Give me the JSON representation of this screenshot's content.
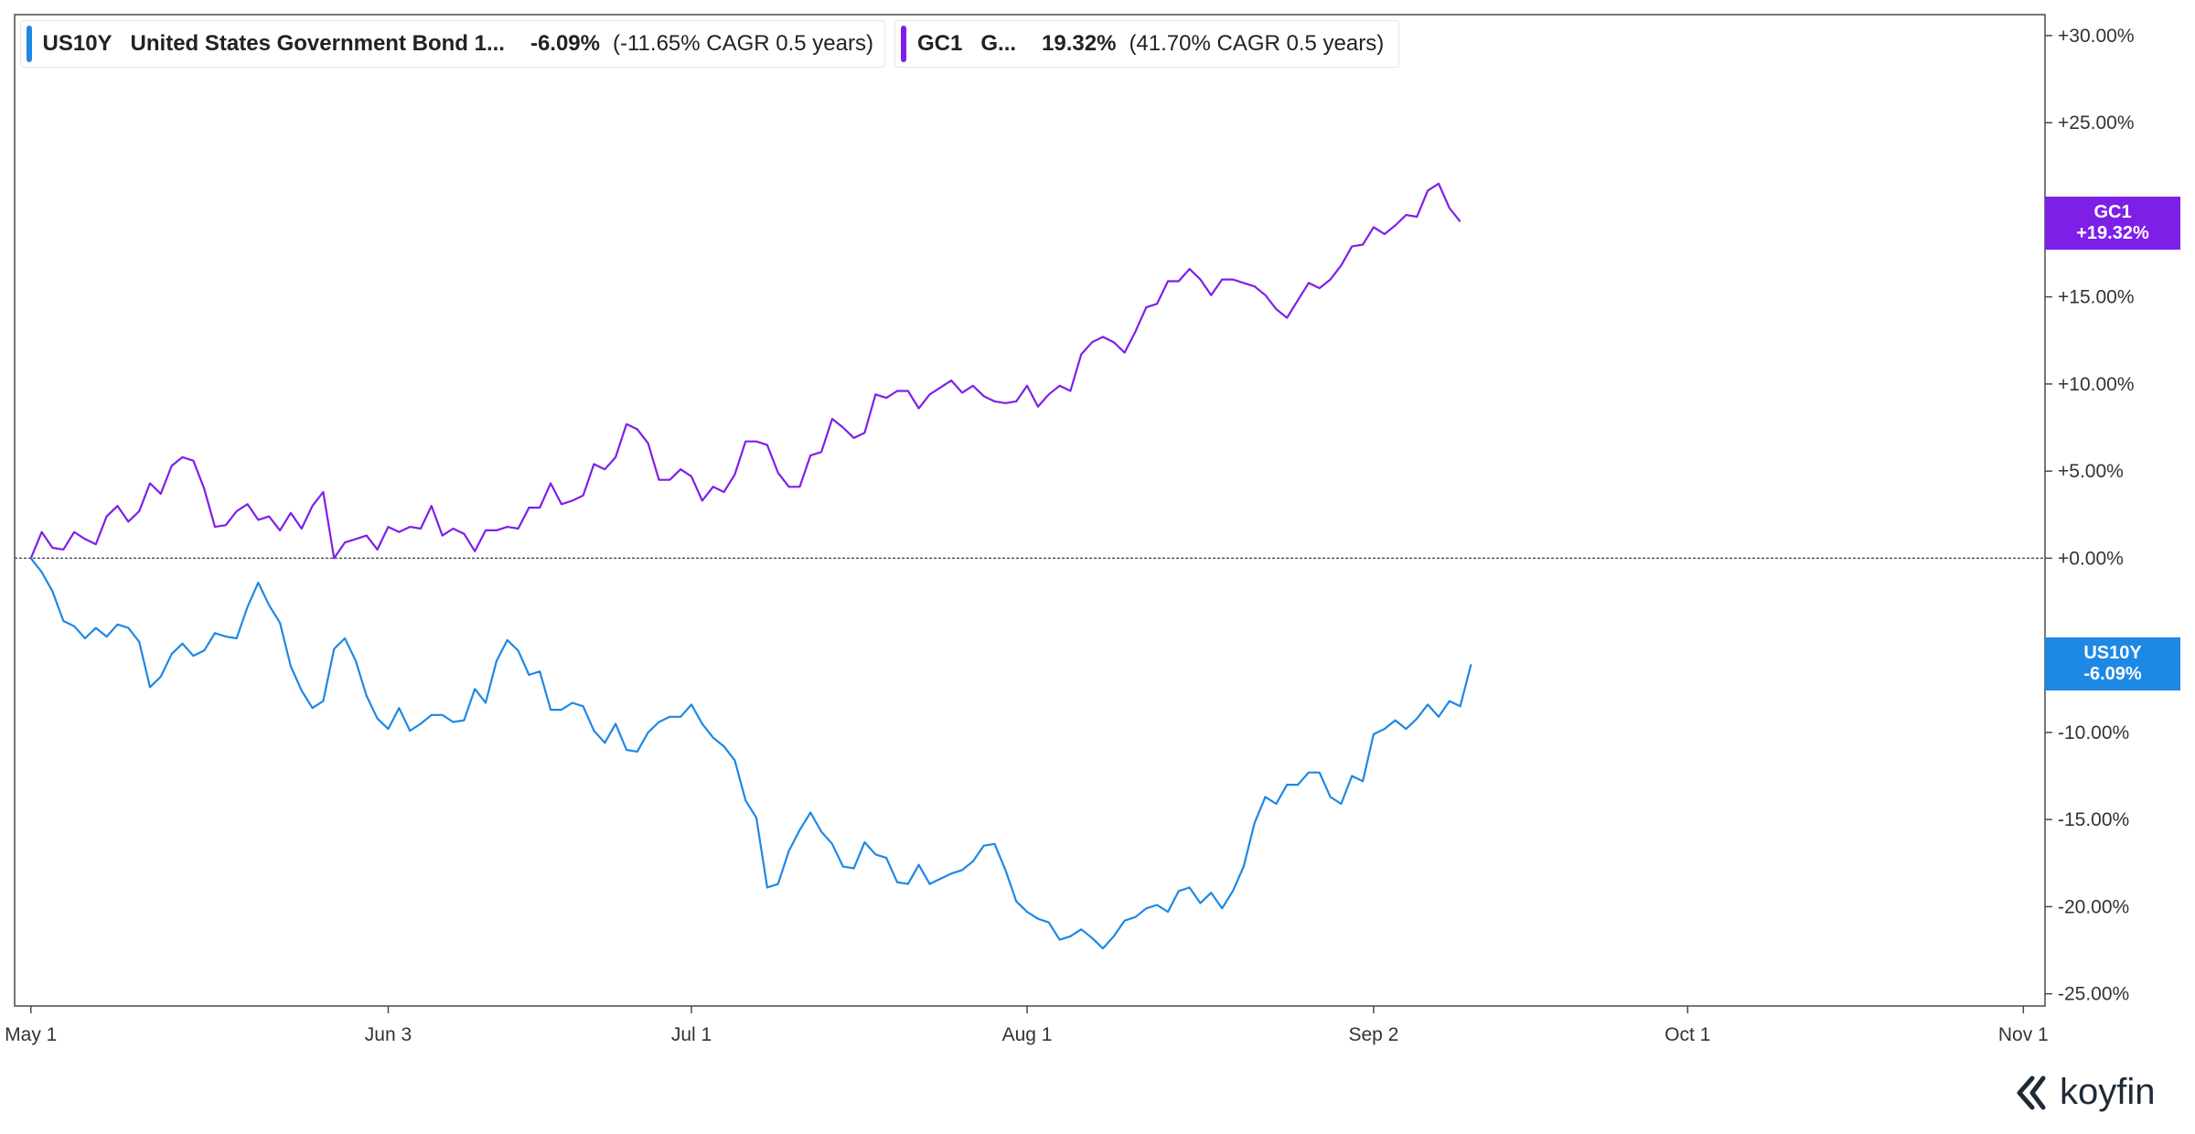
{
  "legend": [
    {
      "ticker": "US10Y",
      "name": "United States Government Bond 1...",
      "change": "-6.09%",
      "cagr": "(-11.65% CAGR 0.5 years)",
      "color": "#1e88e5"
    },
    {
      "ticker": "GC1",
      "name": "G...",
      "change": "19.32%",
      "cagr": "(41.70% CAGR 0.5 years)",
      "color": "#7e1fe8"
    }
  ],
  "end_labels": [
    {
      "ticker": "GC1",
      "value": "+19.32%",
      "color": "#7e1fe8"
    },
    {
      "ticker": "US10Y",
      "value": "-6.09%",
      "color": "#1e88e5"
    }
  ],
  "brand": "koyfin",
  "chart_data": {
    "type": "line",
    "y_ticks": [
      "+30.00%",
      "+25.00%",
      "+20.00%",
      "+15.00%",
      "+10.00%",
      "+5.00%",
      "+0.00%",
      "-5.00%",
      "-10.00%",
      "-15.00%",
      "-20.00%",
      "-25.00%"
    ],
    "y_tick_values": [
      30,
      25,
      20,
      15,
      10,
      5,
      0,
      -5,
      -10,
      -15,
      -20,
      -25
    ],
    "ylim": [
      -25.7,
      31.2
    ],
    "x_ticks": [
      "May 1",
      "Jun 3",
      "Jul 1",
      "Aug 1",
      "Sep 2",
      "Oct 1",
      "Nov 1"
    ],
    "x_tick_days": [
      0,
      33,
      61,
      92,
      124,
      153,
      184
    ],
    "xlim": [
      -1.5,
      186
    ],
    "baseline": 0,
    "series": [
      {
        "name": "GC1",
        "color": "#7e1fe8",
        "points": [
          [
            0,
            0
          ],
          [
            1,
            1.5
          ],
          [
            2,
            0.6
          ],
          [
            3,
            0.5
          ],
          [
            4,
            1.5
          ],
          [
            5,
            1.1
          ],
          [
            6,
            0.8
          ],
          [
            7,
            2.4
          ],
          [
            8,
            3
          ],
          [
            9,
            2.1
          ],
          [
            10,
            2.7
          ],
          [
            11,
            4.3
          ],
          [
            12,
            3.7
          ],
          [
            13,
            5.3
          ],
          [
            14,
            5.8
          ],
          [
            15,
            5.6
          ],
          [
            16,
            4
          ],
          [
            17,
            1.8
          ],
          [
            18,
            1.9
          ],
          [
            19,
            2.7
          ],
          [
            20,
            3.1
          ],
          [
            21,
            2.2
          ],
          [
            22,
            2.4
          ],
          [
            23,
            1.6
          ],
          [
            24,
            2.6
          ],
          [
            25,
            1.7
          ],
          [
            26,
            3
          ],
          [
            27,
            3.8
          ],
          [
            28,
            0
          ],
          [
            29,
            0.9
          ],
          [
            30,
            1.1
          ],
          [
            31,
            1.3
          ],
          [
            32,
            0.5
          ],
          [
            33,
            1.8
          ],
          [
            34,
            1.5
          ],
          [
            35,
            1.8
          ],
          [
            36,
            1.7
          ],
          [
            37,
            3
          ],
          [
            38,
            1.3
          ],
          [
            39,
            1.7
          ],
          [
            40,
            1.4
          ],
          [
            41,
            0.4
          ],
          [
            42,
            1.6
          ],
          [
            43,
            1.6
          ],
          [
            44,
            1.8
          ],
          [
            45,
            1.7
          ],
          [
            46,
            2.9
          ],
          [
            47,
            2.9
          ],
          [
            48,
            4.3
          ],
          [
            49,
            3.1
          ],
          [
            50,
            3.3
          ],
          [
            51,
            3.6
          ],
          [
            52,
            5.4
          ],
          [
            53,
            5.1
          ],
          [
            54,
            5.8
          ],
          [
            55,
            7.7
          ],
          [
            56,
            7.4
          ],
          [
            57,
            6.6
          ],
          [
            58,
            4.5
          ],
          [
            59,
            4.5
          ],
          [
            60,
            5.1
          ],
          [
            61,
            4.7
          ],
          [
            62,
            3.3
          ],
          [
            63,
            4.1
          ],
          [
            64,
            3.8
          ],
          [
            65,
            4.8
          ],
          [
            66,
            6.7
          ],
          [
            67,
            6.7
          ],
          [
            68,
            6.5
          ],
          [
            69,
            4.9
          ],
          [
            70,
            4.1
          ],
          [
            71,
            4.1
          ],
          [
            72,
            5.9
          ],
          [
            73,
            6.1
          ],
          [
            74,
            8
          ],
          [
            75,
            7.5
          ],
          [
            76,
            6.9
          ],
          [
            77,
            7.2
          ],
          [
            78,
            9.4
          ],
          [
            79,
            9.2
          ],
          [
            80,
            9.6
          ],
          [
            81,
            9.6
          ],
          [
            82,
            8.6
          ],
          [
            83,
            9.4
          ],
          [
            84,
            9.8
          ],
          [
            85,
            10.2
          ],
          [
            86,
            9.5
          ],
          [
            87,
            9.9
          ],
          [
            88,
            9.3
          ],
          [
            89,
            9
          ],
          [
            90,
            8.9
          ],
          [
            91,
            9
          ],
          [
            92,
            9.9
          ],
          [
            93,
            8.7
          ],
          [
            94,
            9.4
          ],
          [
            95,
            9.9
          ],
          [
            96,
            9.6
          ],
          [
            97,
            11.7
          ],
          [
            98,
            12.4
          ],
          [
            99,
            12.7
          ],
          [
            100,
            12.4
          ],
          [
            101,
            11.8
          ],
          [
            102,
            13
          ],
          [
            103,
            14.4
          ],
          [
            104,
            14.6
          ],
          [
            105,
            15.9
          ],
          [
            106,
            15.9
          ],
          [
            107,
            16.6
          ],
          [
            108,
            16
          ],
          [
            109,
            15.1
          ],
          [
            110,
            16
          ],
          [
            111,
            16
          ],
          [
            112,
            15.8
          ],
          [
            113,
            15.6
          ],
          [
            114,
            15.1
          ],
          [
            115,
            14.3
          ],
          [
            116,
            13.8
          ],
          [
            117,
            14.8
          ],
          [
            118,
            15.8
          ],
          [
            119,
            15.5
          ],
          [
            120,
            16
          ],
          [
            121,
            16.8
          ],
          [
            122,
            17.9
          ],
          [
            123,
            18
          ],
          [
            124,
            19
          ],
          [
            125,
            18.6
          ],
          [
            126,
            19.1
          ],
          [
            127,
            19.7
          ],
          [
            128,
            19.6
          ],
          [
            129,
            21.1
          ],
          [
            130,
            21.5
          ],
          [
            131,
            20.1
          ],
          [
            132,
            19.32
          ]
        ]
      },
      {
        "name": "US10Y",
        "color": "#1e88e5",
        "points": [
          [
            0,
            0
          ],
          [
            1,
            -0.8
          ],
          [
            2,
            -1.9
          ],
          [
            3,
            -3.6
          ],
          [
            4,
            -3.9
          ],
          [
            5,
            -4.6
          ],
          [
            6,
            -4
          ],
          [
            7,
            -4.5
          ],
          [
            8,
            -3.8
          ],
          [
            9,
            -4
          ],
          [
            10,
            -4.8
          ],
          [
            11,
            -7.4
          ],
          [
            12,
            -6.8
          ],
          [
            13,
            -5.5
          ],
          [
            14,
            -4.9
          ],
          [
            15,
            -5.6
          ],
          [
            16,
            -5.3
          ],
          [
            17,
            -4.3
          ],
          [
            18,
            -4.5
          ],
          [
            19,
            -4.6
          ],
          [
            20,
            -2.8
          ],
          [
            21,
            -1.4
          ],
          [
            22,
            -2.7
          ],
          [
            23,
            -3.7
          ],
          [
            24,
            -6.2
          ],
          [
            25,
            -7.6
          ],
          [
            26,
            -8.6
          ],
          [
            27,
            -8.2
          ],
          [
            28,
            -5.2
          ],
          [
            29,
            -4.6
          ],
          [
            30,
            -5.9
          ],
          [
            31,
            -7.9
          ],
          [
            32,
            -9.2
          ],
          [
            33,
            -9.8
          ],
          [
            34,
            -8.6
          ],
          [
            35,
            -9.9
          ],
          [
            36,
            -9.5
          ],
          [
            37,
            -9
          ],
          [
            38,
            -9
          ],
          [
            39,
            -9.4
          ],
          [
            40,
            -9.3
          ],
          [
            41,
            -7.5
          ],
          [
            42,
            -8.3
          ],
          [
            43,
            -5.9
          ],
          [
            44,
            -4.7
          ],
          [
            45,
            -5.3
          ],
          [
            46,
            -6.7
          ],
          [
            47,
            -6.5
          ],
          [
            48,
            -8.7
          ],
          [
            49,
            -8.7
          ],
          [
            50,
            -8.3
          ],
          [
            51,
            -8.5
          ],
          [
            52,
            -9.9
          ],
          [
            53,
            -10.6
          ],
          [
            54,
            -9.5
          ],
          [
            55,
            -11
          ],
          [
            56,
            -11.1
          ],
          [
            57,
            -10
          ],
          [
            58,
            -9.4
          ],
          [
            59,
            -9.1
          ],
          [
            60,
            -9.1
          ],
          [
            61,
            -8.4
          ],
          [
            62,
            -9.5
          ],
          [
            63,
            -10.3
          ],
          [
            64,
            -10.8
          ],
          [
            65,
            -11.6
          ],
          [
            66,
            -13.9
          ],
          [
            67,
            -14.9
          ],
          [
            68,
            -18.9
          ],
          [
            69,
            -18.7
          ],
          [
            70,
            -16.8
          ],
          [
            71,
            -15.6
          ],
          [
            72,
            -14.6
          ],
          [
            73,
            -15.7
          ],
          [
            74,
            -16.4
          ],
          [
            75,
            -17.7
          ],
          [
            76,
            -17.8
          ],
          [
            77,
            -16.3
          ],
          [
            78,
            -17
          ],
          [
            79,
            -17.2
          ],
          [
            80,
            -18.6
          ],
          [
            81,
            -18.7
          ],
          [
            82,
            -17.6
          ],
          [
            83,
            -18.7
          ],
          [
            84,
            -18.4
          ],
          [
            85,
            -18.1
          ],
          [
            86,
            -17.9
          ],
          [
            87,
            -17.4
          ],
          [
            88,
            -16.5
          ],
          [
            89,
            -16.4
          ],
          [
            90,
            -17.9
          ],
          [
            91,
            -19.7
          ],
          [
            92,
            -20.3
          ],
          [
            93,
            -20.7
          ],
          [
            94,
            -20.9
          ],
          [
            95,
            -21.9
          ],
          [
            96,
            -21.7
          ],
          [
            97,
            -21.3
          ],
          [
            98,
            -21.8
          ],
          [
            99,
            -22.4
          ],
          [
            100,
            -21.7
          ],
          [
            101,
            -20.8
          ],
          [
            102,
            -20.6
          ],
          [
            103,
            -20.1
          ],
          [
            104,
            -19.9
          ],
          [
            105,
            -20.3
          ],
          [
            106,
            -19.1
          ],
          [
            107,
            -18.9
          ],
          [
            108,
            -19.8
          ],
          [
            109,
            -19.2
          ],
          [
            110,
            -20.1
          ],
          [
            111,
            -19.1
          ],
          [
            112,
            -17.7
          ],
          [
            113,
            -15.2
          ],
          [
            114,
            -13.7
          ],
          [
            115,
            -14.1
          ],
          [
            116,
            -13
          ],
          [
            117,
            -13
          ],
          [
            118,
            -12.3
          ],
          [
            119,
            -12.3
          ],
          [
            120,
            -13.7
          ],
          [
            121,
            -14.1
          ],
          [
            122,
            -12.5
          ],
          [
            123,
            -12.8
          ],
          [
            124,
            -10.1
          ],
          [
            125,
            -9.8
          ],
          [
            126,
            -9.3
          ],
          [
            127,
            -9.8
          ],
          [
            128,
            -9.2
          ],
          [
            129,
            -8.4
          ],
          [
            130,
            -9.1
          ],
          [
            131,
            -8.2
          ],
          [
            132,
            -8.5
          ],
          [
            133,
            -6.09
          ]
        ]
      }
    ],
    "grid": false,
    "legend_position": "top-left"
  }
}
